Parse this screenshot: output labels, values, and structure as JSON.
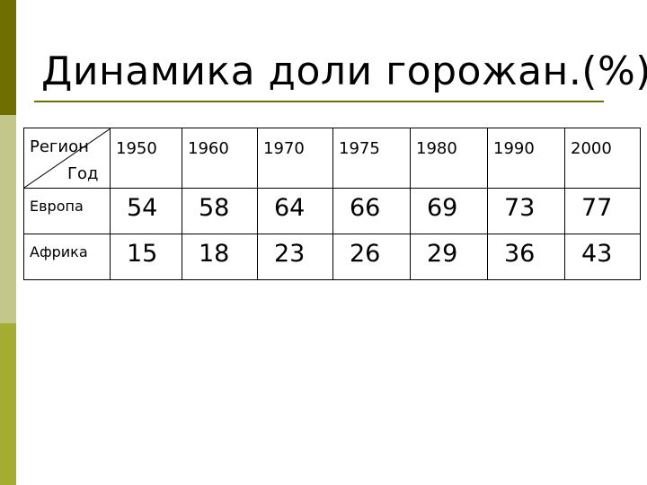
{
  "title": "Динамика доли горожан.(%)",
  "table": {
    "corner_region": "Регион",
    "corner_year": "Год",
    "years": [
      "1950",
      "1960",
      "1970",
      "1975",
      "1980",
      "1990",
      "2000"
    ],
    "rows": [
      {
        "label": "Европа",
        "values": [
          "54",
          "58",
          "64",
          "66",
          "69",
          "73",
          "77"
        ]
      },
      {
        "label": "Африка",
        "values": [
          "15",
          "18",
          "23",
          "26",
          "29",
          "36",
          "43"
        ]
      }
    ]
  },
  "colors": {
    "sidebar_dark": "#6f6f00",
    "sidebar_light": "#c4c78c",
    "sidebar_mid": "#a5ac32",
    "accent_line": "#6f6f00"
  }
}
